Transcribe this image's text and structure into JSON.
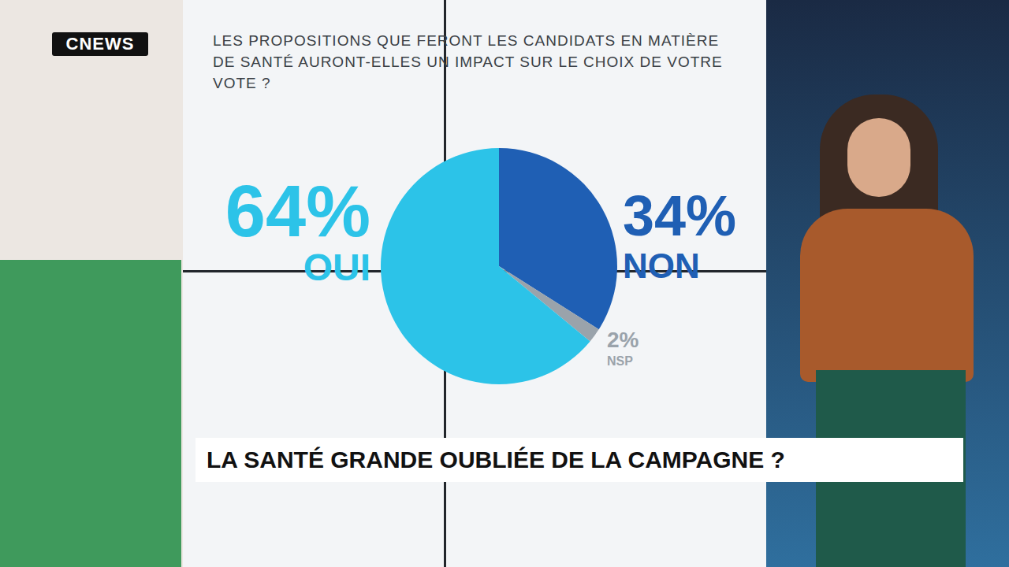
{
  "chart_data": {
    "type": "pie",
    "title": "LES PROPOSITIONS QUE FERONT LES CANDIDATS EN MATIÈRE DE SANTÉ AURONT-ELLES UN IMPACT SUR LE CHOIX DE VOTRE VOTE ?",
    "categories": [
      "NON",
      "NSP",
      "OUI"
    ],
    "values": [
      34,
      2,
      64
    ],
    "value_labels": [
      "34%",
      "2%",
      "64%"
    ],
    "colors": [
      "#1f5fb4",
      "#9aa3ab",
      "#2cc3e8"
    ],
    "data_labels": true
  },
  "caption": "LA SANTÉ GRANDE OUBLIÉE DE LA CAMPAGNE ?",
  "logo": "CNEWS"
}
